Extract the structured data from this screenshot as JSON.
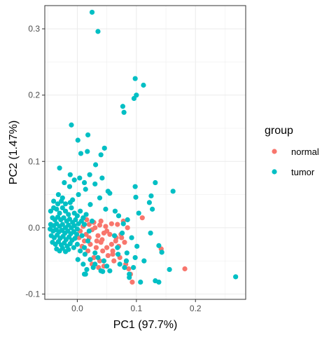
{
  "chart_data": {
    "type": "scatter",
    "title": "",
    "xlabel": "PC1 (97.7%)",
    "ylabel": "PC2 (1.47%)",
    "xlim": [
      -0.055,
      0.285
    ],
    "ylim": [
      -0.108,
      0.335
    ],
    "xticks": [
      0.0,
      0.1,
      0.2
    ],
    "xtick_labels": [
      "0.0",
      "0.1",
      "0.2"
    ],
    "yticks": [
      -0.1,
      0.0,
      0.1,
      0.2,
      0.3
    ],
    "ytick_labels": [
      "-0.1",
      "0.0",
      "0.1",
      "0.2",
      "0.3"
    ],
    "grid": true,
    "legend": {
      "title": "group",
      "position": "right",
      "entries": [
        {
          "label": "normal",
          "color": "#F8766D"
        },
        {
          "label": "tumor",
          "color": "#00BFC4"
        }
      ]
    },
    "series": [
      {
        "name": "normal",
        "color": "#F8766D",
        "points": [
          [
            0.005,
            -0.005
          ],
          [
            0.01,
            0.002
          ],
          [
            0.015,
            -0.01
          ],
          [
            0.02,
            -0.015
          ],
          [
            0.025,
            -0.003
          ],
          [
            0.03,
            0.0
          ],
          [
            0.035,
            -0.012
          ],
          [
            0.04,
            -0.022
          ],
          [
            0.045,
            -0.008
          ],
          [
            0.05,
            -0.03
          ],
          [
            0.055,
            -0.01
          ],
          [
            0.06,
            -0.035
          ],
          [
            0.065,
            -0.02
          ],
          [
            0.07,
            -0.028
          ],
          [
            0.075,
            -0.015
          ],
          [
            0.08,
            -0.022
          ],
          [
            0.085,
            0.0
          ],
          [
            0.012,
            -0.02
          ],
          [
            0.022,
            -0.025
          ],
          [
            0.032,
            -0.03
          ],
          [
            0.042,
            -0.018
          ],
          [
            0.052,
            -0.042
          ],
          [
            0.062,
            -0.05
          ],
          [
            0.072,
            -0.045
          ],
          [
            0.082,
            -0.055
          ],
          [
            0.087,
            -0.062
          ],
          [
            0.09,
            -0.07
          ],
          [
            0.02,
            0.005
          ],
          [
            0.028,
            0.008
          ],
          [
            0.038,
            0.004
          ],
          [
            0.048,
            0.002
          ],
          [
            0.058,
            0.006
          ],
          [
            0.068,
            0.005
          ],
          [
            0.078,
            0.01
          ],
          [
            0.018,
            -0.035
          ],
          [
            0.028,
            -0.045
          ],
          [
            0.038,
            -0.05
          ],
          [
            0.045,
            -0.058
          ],
          [
            0.008,
            -0.028
          ],
          [
            0.003,
            -0.015
          ],
          [
            0.033,
            -0.02
          ],
          [
            0.043,
            -0.035
          ],
          [
            0.058,
            -0.025
          ],
          [
            0.066,
            -0.015
          ],
          [
            0.074,
            -0.01
          ],
          [
            0.11,
            0.015
          ],
          [
            0.142,
            -0.032
          ],
          [
            0.182,
            -0.062
          ],
          [
            0.093,
            -0.082
          ],
          [
            0.025,
            -0.055
          ],
          [
            0.036,
            -0.06
          ],
          [
            0.05,
            -0.005
          ],
          [
            0.016,
            0.012
          ],
          [
            0.04,
            0.01
          ],
          [
            0.06,
            -0.04
          ]
        ]
      },
      {
        "name": "tumor",
        "color": "#00BFC4",
        "points": [
          [
            0.025,
            0.325
          ],
          [
            0.035,
            0.296
          ],
          [
            0.098,
            0.225
          ],
          [
            0.112,
            0.215
          ],
          [
            0.1,
            0.2
          ],
          [
            0.096,
            0.195
          ],
          [
            0.077,
            0.183
          ],
          [
            0.079,
            0.174
          ],
          [
            -0.01,
            0.155
          ],
          [
            0.018,
            0.14
          ],
          [
            0.001,
            0.132
          ],
          [
            0.046,
            0.12
          ],
          [
            0.017,
            0.115
          ],
          [
            0.006,
            0.112
          ],
          [
            0.04,
            0.11
          ],
          [
            0.031,
            0.095
          ],
          [
            -0.03,
            0.09
          ],
          [
            -0.012,
            0.08
          ],
          [
            0.021,
            0.08
          ],
          [
            0.004,
            0.075
          ],
          [
            0.042,
            0.075
          ],
          [
            0.012,
            0.068
          ],
          [
            -0.005,
            0.072
          ],
          [
            -0.022,
            0.068
          ],
          [
            0.03,
            0.066
          ],
          [
            0.014,
            0.058
          ],
          [
            -0.013,
            0.062
          ],
          [
            0.052,
            0.055
          ],
          [
            0.002,
            0.05
          ],
          [
            -0.032,
            0.05
          ],
          [
            -0.025,
            0.045
          ],
          [
            0.055,
            0.052
          ],
          [
            0.098,
            0.062
          ],
          [
            0.132,
            0.068
          ],
          [
            0.162,
            0.055
          ],
          [
            0.125,
            0.048
          ],
          [
            0.099,
            0.046
          ],
          [
            0.122,
            0.038
          ],
          [
            0.127,
            0.028
          ],
          [
            0.104,
            0.022
          ],
          [
            0.048,
            0.028
          ],
          [
            0.038,
            0.045
          ],
          [
            -0.008,
            0.042
          ],
          [
            -0.04,
            0.04
          ],
          [
            0.022,
            0.035
          ],
          [
            0.064,
            0.025
          ],
          [
            0.07,
            0.018
          ],
          [
            0.085,
            0.012
          ],
          [
            0.078,
            0.006
          ],
          [
            -0.04,
            0.03
          ],
          [
            -0.045,
            0.025
          ],
          [
            -0.035,
            0.028
          ],
          [
            -0.03,
            0.022
          ],
          [
            -0.025,
            0.03
          ],
          [
            -0.02,
            0.025
          ],
          [
            -0.015,
            0.02
          ],
          [
            -0.01,
            0.03
          ],
          [
            -0.005,
            0.022
          ],
          [
            0.0,
            0.018
          ],
          [
            0.005,
            0.025
          ],
          [
            0.01,
            0.015
          ],
          [
            0.015,
            0.02
          ],
          [
            -0.042,
            0.015
          ],
          [
            -0.038,
            0.012
          ],
          [
            -0.033,
            0.016
          ],
          [
            -0.028,
            0.012
          ],
          [
            -0.023,
            0.015
          ],
          [
            -0.018,
            0.01
          ],
          [
            -0.013,
            0.013
          ],
          [
            -0.008,
            0.008
          ],
          [
            -0.003,
            0.012
          ],
          [
            0.002,
            0.006
          ],
          [
            0.007,
            0.01
          ],
          [
            0.012,
            0.005
          ],
          [
            -0.045,
            0.005
          ],
          [
            -0.04,
            0.003
          ],
          [
            -0.035,
            0.006
          ],
          [
            -0.03,
            0.002
          ],
          [
            -0.025,
            0.005
          ],
          [
            -0.02,
            0.0
          ],
          [
            -0.015,
            0.004
          ],
          [
            -0.01,
            0.0
          ],
          [
            -0.005,
            0.003
          ],
          [
            0.0,
            -0.002
          ],
          [
            -0.046,
            -0.002
          ],
          [
            -0.041,
            -0.005
          ],
          [
            -0.036,
            -0.003
          ],
          [
            -0.031,
            -0.006
          ],
          [
            -0.026,
            -0.004
          ],
          [
            -0.021,
            -0.008
          ],
          [
            -0.016,
            -0.005
          ],
          [
            -0.011,
            -0.009
          ],
          [
            -0.006,
            -0.006
          ],
          [
            -0.001,
            -0.01
          ],
          [
            -0.044,
            -0.012
          ],
          [
            -0.039,
            -0.015
          ],
          [
            -0.034,
            -0.011
          ],
          [
            -0.029,
            -0.016
          ],
          [
            -0.024,
            -0.013
          ],
          [
            -0.019,
            -0.018
          ],
          [
            -0.014,
            -0.014
          ],
          [
            -0.009,
            -0.019
          ],
          [
            -0.004,
            -0.016
          ],
          [
            -0.042,
            -0.022
          ],
          [
            -0.037,
            -0.025
          ],
          [
            -0.032,
            -0.021
          ],
          [
            -0.027,
            -0.026
          ],
          [
            -0.022,
            -0.023
          ],
          [
            -0.017,
            -0.028
          ],
          [
            -0.012,
            -0.024
          ],
          [
            -0.035,
            -0.032
          ],
          [
            -0.03,
            -0.035
          ],
          [
            -0.025,
            -0.031
          ],
          [
            -0.02,
            -0.036
          ],
          [
            -0.015,
            -0.033
          ],
          [
            -0.033,
            0.036
          ],
          [
            -0.027,
            0.04
          ],
          [
            -0.02,
            0.036
          ],
          [
            -0.012,
            0.038
          ],
          [
            0.02,
            -0.005
          ],
          [
            0.025,
            0.01
          ],
          [
            0.008,
            -0.012
          ],
          [
            0.018,
            -0.02
          ],
          [
            0.012,
            -0.03
          ],
          [
            0.0,
            -0.025
          ],
          [
            0.005,
            -0.035
          ],
          [
            -0.006,
            -0.03
          ],
          [
            0.013,
            -0.04
          ],
          [
            0.03,
            -0.038
          ],
          [
            0.022,
            -0.048
          ],
          [
            0.03,
            -0.055
          ],
          [
            0.035,
            -0.045
          ],
          [
            0.045,
            -0.05
          ],
          [
            0.05,
            -0.058
          ],
          [
            0.055,
            -0.065
          ],
          [
            0.043,
            -0.066
          ],
          [
            0.014,
            -0.07
          ],
          [
            0.012,
            -0.07
          ],
          [
            0.013,
            -0.07
          ],
          [
            0.08,
            -0.06
          ],
          [
            0.083,
            -0.05
          ],
          [
            0.084,
            -0.038
          ],
          [
            0.072,
            -0.055
          ],
          [
            0.088,
            -0.07
          ],
          [
            0.088,
            -0.075
          ],
          [
            0.095,
            -0.06
          ],
          [
            0.098,
            -0.045
          ],
          [
            0.101,
            -0.028
          ],
          [
            0.092,
            -0.015
          ],
          [
            0.076,
            -0.008
          ],
          [
            0.069,
            -0.04
          ],
          [
            0.068,
            -0.03
          ],
          [
            0.063,
            -0.012
          ],
          [
            0.124,
            -0.008
          ],
          [
            0.138,
            -0.027
          ],
          [
            0.143,
            -0.037
          ],
          [
            0.113,
            -0.05
          ],
          [
            0.156,
            -0.063
          ],
          [
            0.107,
            -0.082
          ],
          [
            0.132,
            -0.08
          ],
          [
            0.138,
            -0.082
          ],
          [
            0.268,
            -0.074
          ],
          [
            0.016,
            -0.063
          ],
          [
            0.027,
            -0.06
          ],
          [
            0.04,
            -0.065
          ],
          [
            0.001,
            -0.048
          ],
          [
            0.01,
            -0.055
          ]
        ]
      }
    ]
  }
}
